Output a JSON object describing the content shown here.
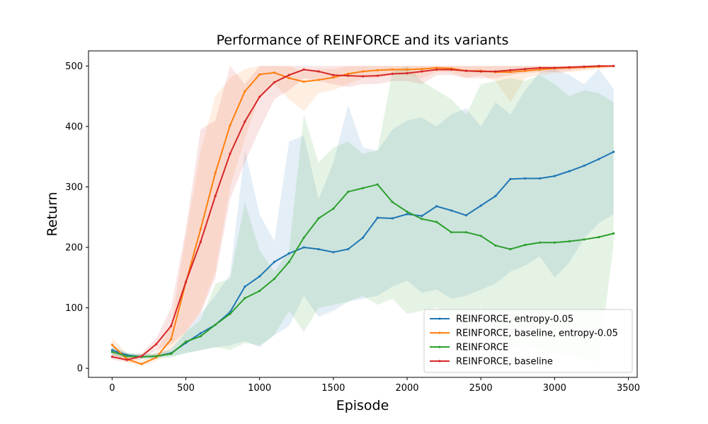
{
  "chart_data": {
    "type": "line",
    "title": "Performance of REINFORCE and its variants",
    "xlabel": "Episode",
    "ylabel": "Return",
    "xlim": [
      -160,
      3560
    ],
    "ylim": [
      -15,
      525
    ],
    "xticks": [
      0,
      500,
      1000,
      1500,
      2000,
      2500,
      3000,
      3500
    ],
    "yticks": [
      0,
      100,
      200,
      300,
      400,
      500
    ],
    "grid": false,
    "legend_position": "lower-right",
    "x": [
      0,
      100,
      200,
      300,
      400,
      500,
      600,
      700,
      800,
      900,
      1000,
      1100,
      1200,
      1300,
      1400,
      1500,
      1600,
      1700,
      1800,
      1900,
      2000,
      2100,
      2200,
      2300,
      2400,
      2500,
      2600,
      2700,
      2800,
      2900,
      3000,
      3100,
      3200,
      3300,
      3400
    ],
    "series": [
      {
        "name": "REINFORCE, entropy-0.05",
        "color": "#1f77b4",
        "values": [
          30,
          22,
          19,
          20,
          25,
          42,
          58,
          72,
          93,
          135,
          152,
          176,
          190,
          200,
          197,
          192,
          197,
          216,
          249,
          248,
          255,
          252,
          268,
          261,
          253,
          269,
          285,
          313,
          314,
          314,
          318,
          326,
          335,
          346,
          358
        ],
        "lower": [
          22,
          18,
          16,
          17,
          20,
          25,
          30,
          35,
          38,
          45,
          35,
          55,
          70,
          120,
          85,
          95,
          110,
          115,
          120,
          135,
          145,
          125,
          130,
          115,
          120,
          130,
          140,
          160,
          170,
          185,
          150,
          175,
          215,
          240,
          255
        ],
        "upper": [
          38,
          26,
          23,
          24,
          32,
          60,
          90,
          120,
          155,
          360,
          255,
          210,
          375,
          385,
          280,
          340,
          435,
          365,
          360,
          395,
          410,
          415,
          400,
          420,
          430,
          400,
          440,
          420,
          460,
          490,
          495,
          485,
          470,
          495,
          462
        ]
      },
      {
        "name": "REINFORCE, baseline, entropy-0.05",
        "color": "#ff7f0e",
        "values": [
          39,
          15,
          7,
          18,
          48,
          142,
          230,
          323,
          402,
          458,
          486,
          489,
          480,
          474,
          477,
          481,
          487,
          491,
          493,
          494,
          494,
          495,
          497,
          496,
          492,
          492,
          490,
          490,
          492,
          494,
          496,
          497,
          498,
          499,
          500
        ],
        "lower": [
          25,
          10,
          4,
          12,
          30,
          60,
          95,
          160,
          300,
          380,
          450,
          470,
          445,
          425,
          455,
          460,
          470,
          480,
          480,
          485,
          485,
          480,
          490,
          490,
          480,
          485,
          475,
          440,
          480,
          485,
          488,
          490,
          492,
          495,
          497
        ],
        "upper": [
          50,
          25,
          12,
          28,
          70,
          220,
          360,
          450,
          480,
          495,
          500,
          500,
          500,
          490,
          495,
          495,
          500,
          500,
          500,
          500,
          500,
          500,
          500,
          500,
          500,
          500,
          500,
          500,
          500,
          500,
          500,
          500,
          500,
          500,
          500
        ]
      },
      {
        "name": "REINFORCE",
        "color": "#2ca02c",
        "values": [
          27,
          20,
          19,
          20,
          24,
          44,
          53,
          72,
          90,
          116,
          128,
          148,
          176,
          216,
          248,
          264,
          292,
          298,
          304,
          275,
          259,
          247,
          242,
          225,
          225,
          219,
          203,
          197,
          204,
          208,
          208,
          210,
          213,
          217,
          223
        ],
        "lower": [
          20,
          16,
          15,
          16,
          18,
          25,
          30,
          35,
          30,
          42,
          38,
          55,
          95,
          60,
          100,
          105,
          110,
          120,
          105,
          115,
          90,
          95,
          100,
          85,
          55,
          100,
          60,
          30,
          40,
          30,
          25,
          20,
          15,
          10,
          205
        ],
        "upper": [
          35,
          25,
          24,
          25,
          30,
          60,
          80,
          140,
          148,
          275,
          195,
          160,
          195,
          420,
          340,
          365,
          375,
          355,
          360,
          490,
          500,
          475,
          460,
          445,
          420,
          470,
          475,
          480,
          475,
          485,
          470,
          450,
          460,
          455,
          440
        ]
      },
      {
        "name": "REINFORCE, baseline",
        "color": "#d62728",
        "values": [
          19,
          14,
          20,
          40,
          70,
          143,
          209,
          285,
          355,
          408,
          449,
          473,
          485,
          494,
          491,
          485,
          484,
          483,
          484,
          487,
          488,
          491,
          494,
          494,
          492,
          491,
          491,
          493,
          495,
          497,
          497,
          498,
          499,
          500,
          500
        ],
        "lower": [
          14,
          10,
          15,
          30,
          40,
          60,
          90,
          150,
          280,
          340,
          395,
          445,
          460,
          480,
          475,
          470,
          465,
          470,
          470,
          475,
          475,
          470,
          485,
          485,
          480,
          480,
          480,
          485,
          488,
          490,
          490,
          492,
          495,
          497,
          498
        ],
        "upper": [
          24,
          18,
          25,
          50,
          100,
          230,
          395,
          410,
          500,
          470,
          500,
          500,
          500,
          500,
          500,
          500,
          500,
          500,
          500,
          500,
          500,
          500,
          500,
          500,
          500,
          500,
          500,
          500,
          500,
          500,
          500,
          500,
          500,
          500,
          500
        ]
      }
    ]
  }
}
